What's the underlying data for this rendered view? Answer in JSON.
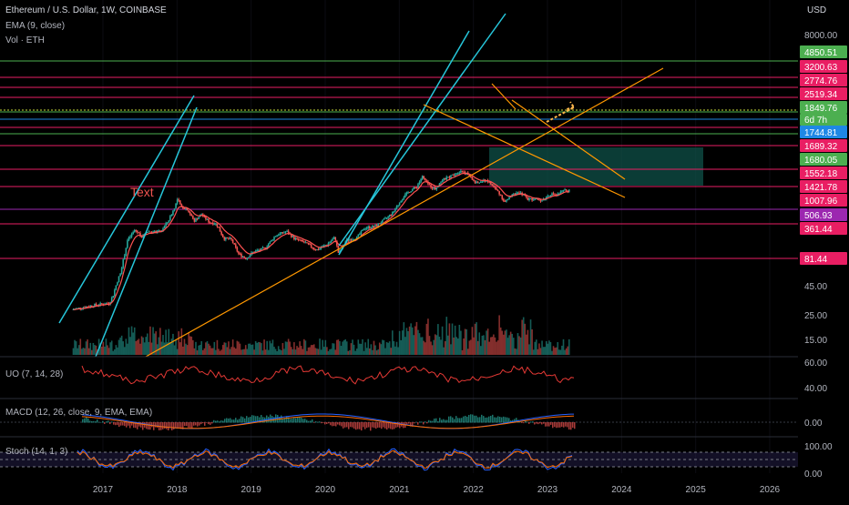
{
  "header": {
    "title": "Ethereum / U.S. Dollar, 1W, COINBASE",
    "ema_label": "EMA (9, close)",
    "vol_label": "Vol · ETH",
    "currency": "USD"
  },
  "panes": {
    "uo_label": "UO (7, 14, 28)",
    "macd_label": "MACD (12, 26, close, 9, EMA, EMA)",
    "stoch_label": "Stoch (14, 1, 3)"
  },
  "annotation_text": "Text",
  "countdown": "6d 7h",
  "chart_data": {
    "type": "candlestick",
    "title": "Ethereum / U.S. Dollar, 1W, COINBASE",
    "x_ticks": [
      "2017",
      "2018",
      "2019",
      "2020",
      "2021",
      "2022",
      "2023",
      "2024",
      "2025",
      "2026"
    ],
    "price_ticks": [
      "8000.00"
    ],
    "volume_ticks": [
      "45.00",
      "25.00",
      "15.00"
    ],
    "uo_ticks": [
      "60.00",
      "40.00"
    ],
    "macd_ticks": [
      "0.00"
    ],
    "stoch_ticks": [
      "100.00",
      "0.00"
    ],
    "price_path": [
      [
        2016.6,
        9
      ],
      [
        2016.9,
        11
      ],
      [
        2017.1,
        12
      ],
      [
        2017.15,
        16
      ],
      [
        2017.2,
        28
      ],
      [
        2017.25,
        45
      ],
      [
        2017.3,
        90
      ],
      [
        2017.35,
        200
      ],
      [
        2017.45,
        320
      ],
      [
        2017.5,
        280
      ],
      [
        2017.55,
        230
      ],
      [
        2017.6,
        300
      ],
      [
        2017.7,
        290
      ],
      [
        2017.8,
        300
      ],
      [
        2017.9,
        480
      ],
      [
        2017.97,
        780
      ],
      [
        2018.03,
        1300
      ],
      [
        2018.07,
        900
      ],
      [
        2018.15,
        850
      ],
      [
        2018.25,
        480
      ],
      [
        2018.35,
        650
      ],
      [
        2018.45,
        460
      ],
      [
        2018.55,
        420
      ],
      [
        2018.65,
        220
      ],
      [
        2018.75,
        210
      ],
      [
        2018.85,
        110
      ],
      [
        2018.95,
        90
      ],
      [
        2019.05,
        120
      ],
      [
        2019.2,
        140
      ],
      [
        2019.35,
        250
      ],
      [
        2019.5,
        300
      ],
      [
        2019.6,
        220
      ],
      [
        2019.75,
        180
      ],
      [
        2019.9,
        130
      ],
      [
        2020.05,
        170
      ],
      [
        2020.15,
        230
      ],
      [
        2020.2,
        110
      ],
      [
        2020.3,
        200
      ],
      [
        2020.45,
        230
      ],
      [
        2020.55,
        350
      ],
      [
        2020.7,
        380
      ],
      [
        2020.85,
        550
      ],
      [
        2020.95,
        740
      ],
      [
        2021.05,
        1300
      ],
      [
        2021.15,
        1800
      ],
      [
        2021.25,
        2200
      ],
      [
        2021.33,
        3500
      ],
      [
        2021.4,
        2500
      ],
      [
        2021.5,
        2000
      ],
      [
        2021.6,
        3000
      ],
      [
        2021.7,
        3500
      ],
      [
        2021.85,
        4600
      ],
      [
        2021.95,
        3800
      ],
      [
        2022.05,
        2600
      ],
      [
        2022.2,
        3000
      ],
      [
        2022.35,
        1800
      ],
      [
        2022.45,
        1100
      ],
      [
        2022.55,
        1650
      ],
      [
        2022.68,
        1600
      ],
      [
        2022.75,
        1300
      ],
      [
        2022.85,
        1250
      ],
      [
        2022.95,
        1200
      ],
      [
        2023.05,
        1600
      ],
      [
        2023.15,
        1550
      ],
      [
        2023.25,
        1900
      ],
      [
        2023.3,
        1860
      ]
    ],
    "horizontal_levels": [
      {
        "value": 4850.51,
        "label": "4850.51",
        "color": "#4caf50"
      },
      {
        "value": 3200.63,
        "label": "3200.63",
        "color": "#e91e63"
      },
      {
        "value": 2774.76,
        "label": "2774.76",
        "color": "#e91e63"
      },
      {
        "value": 2519.34,
        "label": "2519.34",
        "color": "#e91e63"
      },
      {
        "value": 1849.76,
        "label": "1849.76",
        "color": "#4caf50"
      },
      {
        "value": 1744.81,
        "label": "1744.81",
        "color": "#1e88e5"
      },
      {
        "value": 1689.32,
        "label": "1689.32",
        "color": "#e91e63"
      },
      {
        "value": 1680.05,
        "label": "1680.05",
        "color": "#4caf50"
      },
      {
        "value": 1552.18,
        "label": "1552.18",
        "color": "#e91e63"
      },
      {
        "value": 1421.78,
        "label": "1421.78",
        "color": "#e91e63"
      },
      {
        "value": 1007.96,
        "label": "1007.96",
        "color": "#e91e63"
      },
      {
        "value": 506.93,
        "label": "506.93",
        "color": "#9c27b0"
      },
      {
        "value": 361.44,
        "label": "361.44",
        "color": "#e91e63"
      },
      {
        "value": 81.44,
        "label": "81.44",
        "color": "#e91e63"
      }
    ],
    "colors": {
      "up": "#26a69a",
      "down": "#ef5350",
      "ema": "#ff5252",
      "channel": "#26c6da",
      "trend": "#ff9800",
      "zone": "#0f5048"
    }
  }
}
